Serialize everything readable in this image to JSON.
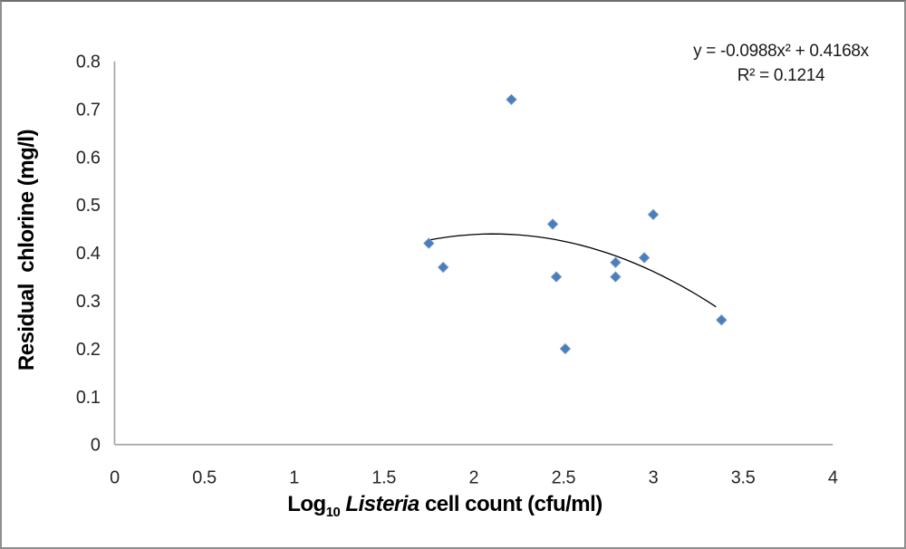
{
  "page": {
    "background": "#ffffff",
    "border_color": "#8f8f8f"
  },
  "chart_data": {
    "type": "scatter",
    "title": "",
    "ylabel": "Residual  chlorine (mg/l)",
    "xlabel": {
      "log": "Log",
      "sub": "10",
      "species": " Listeria",
      "rest": " cell count (cfu/ml)"
    },
    "xlim": [
      0,
      4
    ],
    "ylim": [
      0,
      0.8
    ],
    "xticks": [
      "0",
      "0.5",
      "1",
      "1.5",
      "2",
      "2.5",
      "3",
      "3.5",
      "4"
    ],
    "yticks": [
      "0",
      "0.1",
      "0.2",
      "0.3",
      "0.4",
      "0.5",
      "0.6",
      "0.7",
      "0.8"
    ],
    "grid": false,
    "legend": false,
    "points": [
      {
        "x": 1.75,
        "y": 0.42
      },
      {
        "x": 1.83,
        "y": 0.37
      },
      {
        "x": 2.21,
        "y": 0.72
      },
      {
        "x": 2.44,
        "y": 0.46
      },
      {
        "x": 2.46,
        "y": 0.35
      },
      {
        "x": 2.51,
        "y": 0.2
      },
      {
        "x": 2.79,
        "y": 0.38
      },
      {
        "x": 2.79,
        "y": 0.35
      },
      {
        "x": 2.95,
        "y": 0.39
      },
      {
        "x": 3.0,
        "y": 0.48
      },
      {
        "x": 3.38,
        "y": 0.26
      }
    ],
    "marker": {
      "shape": "diamond",
      "color": "#4A7EBB",
      "edge_color": "#6F93C8",
      "size": 11
    },
    "trendline": {
      "equation": "y = -0.0988x² + 0.4168x",
      "r_squared_label": "R² = 0.1214",
      "coefficients": {
        "a": -0.0988,
        "b": 0.4168,
        "c": 0
      },
      "x_start": 1.75,
      "x_end": 3.39,
      "color": "#000000"
    },
    "axis_color": "#A6A6A6",
    "tick_color": "#262626"
  }
}
